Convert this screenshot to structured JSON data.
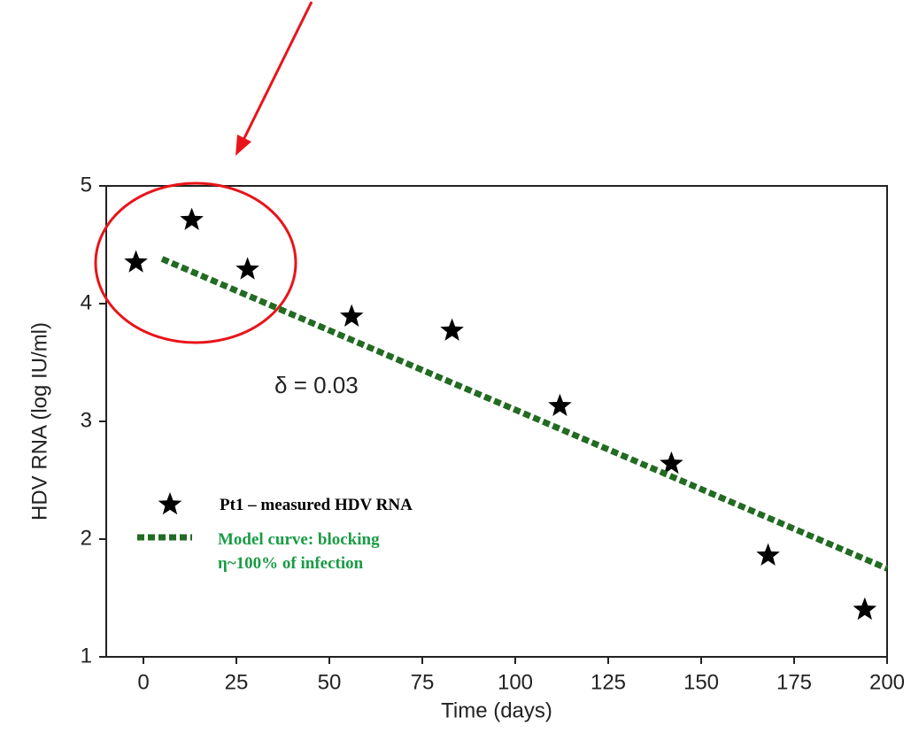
{
  "chart_data": {
    "type": "scatter",
    "x_label": "Time (days)",
    "y_label": "HDV RNA (log IU/ml)",
    "annotation": "δ = 0.03",
    "xlim": [
      -10,
      200
    ],
    "xticks": [
      0,
      25,
      50,
      75,
      100,
      125,
      150,
      175,
      200
    ],
    "ylim": [
      1,
      5
    ],
    "yticks": [
      1,
      2,
      3,
      4,
      5
    ],
    "series": [
      {
        "name": "Pt1 – measured HDV RNA",
        "color": "#000000",
        "marker": "star",
        "x": [
          -2,
          13,
          28,
          56,
          83,
          112,
          142,
          168,
          194
        ],
        "values": [
          4.35,
          4.71,
          4.29,
          3.89,
          3.77,
          3.13,
          2.64,
          1.86,
          1.4
        ]
      },
      {
        "name": "Model curve: blocking η~100% of infection",
        "color": "#226b22",
        "line_style": "dashed",
        "x": [
          5,
          200
        ],
        "values": [
          4.38,
          1.75
        ]
      }
    ]
  }
}
